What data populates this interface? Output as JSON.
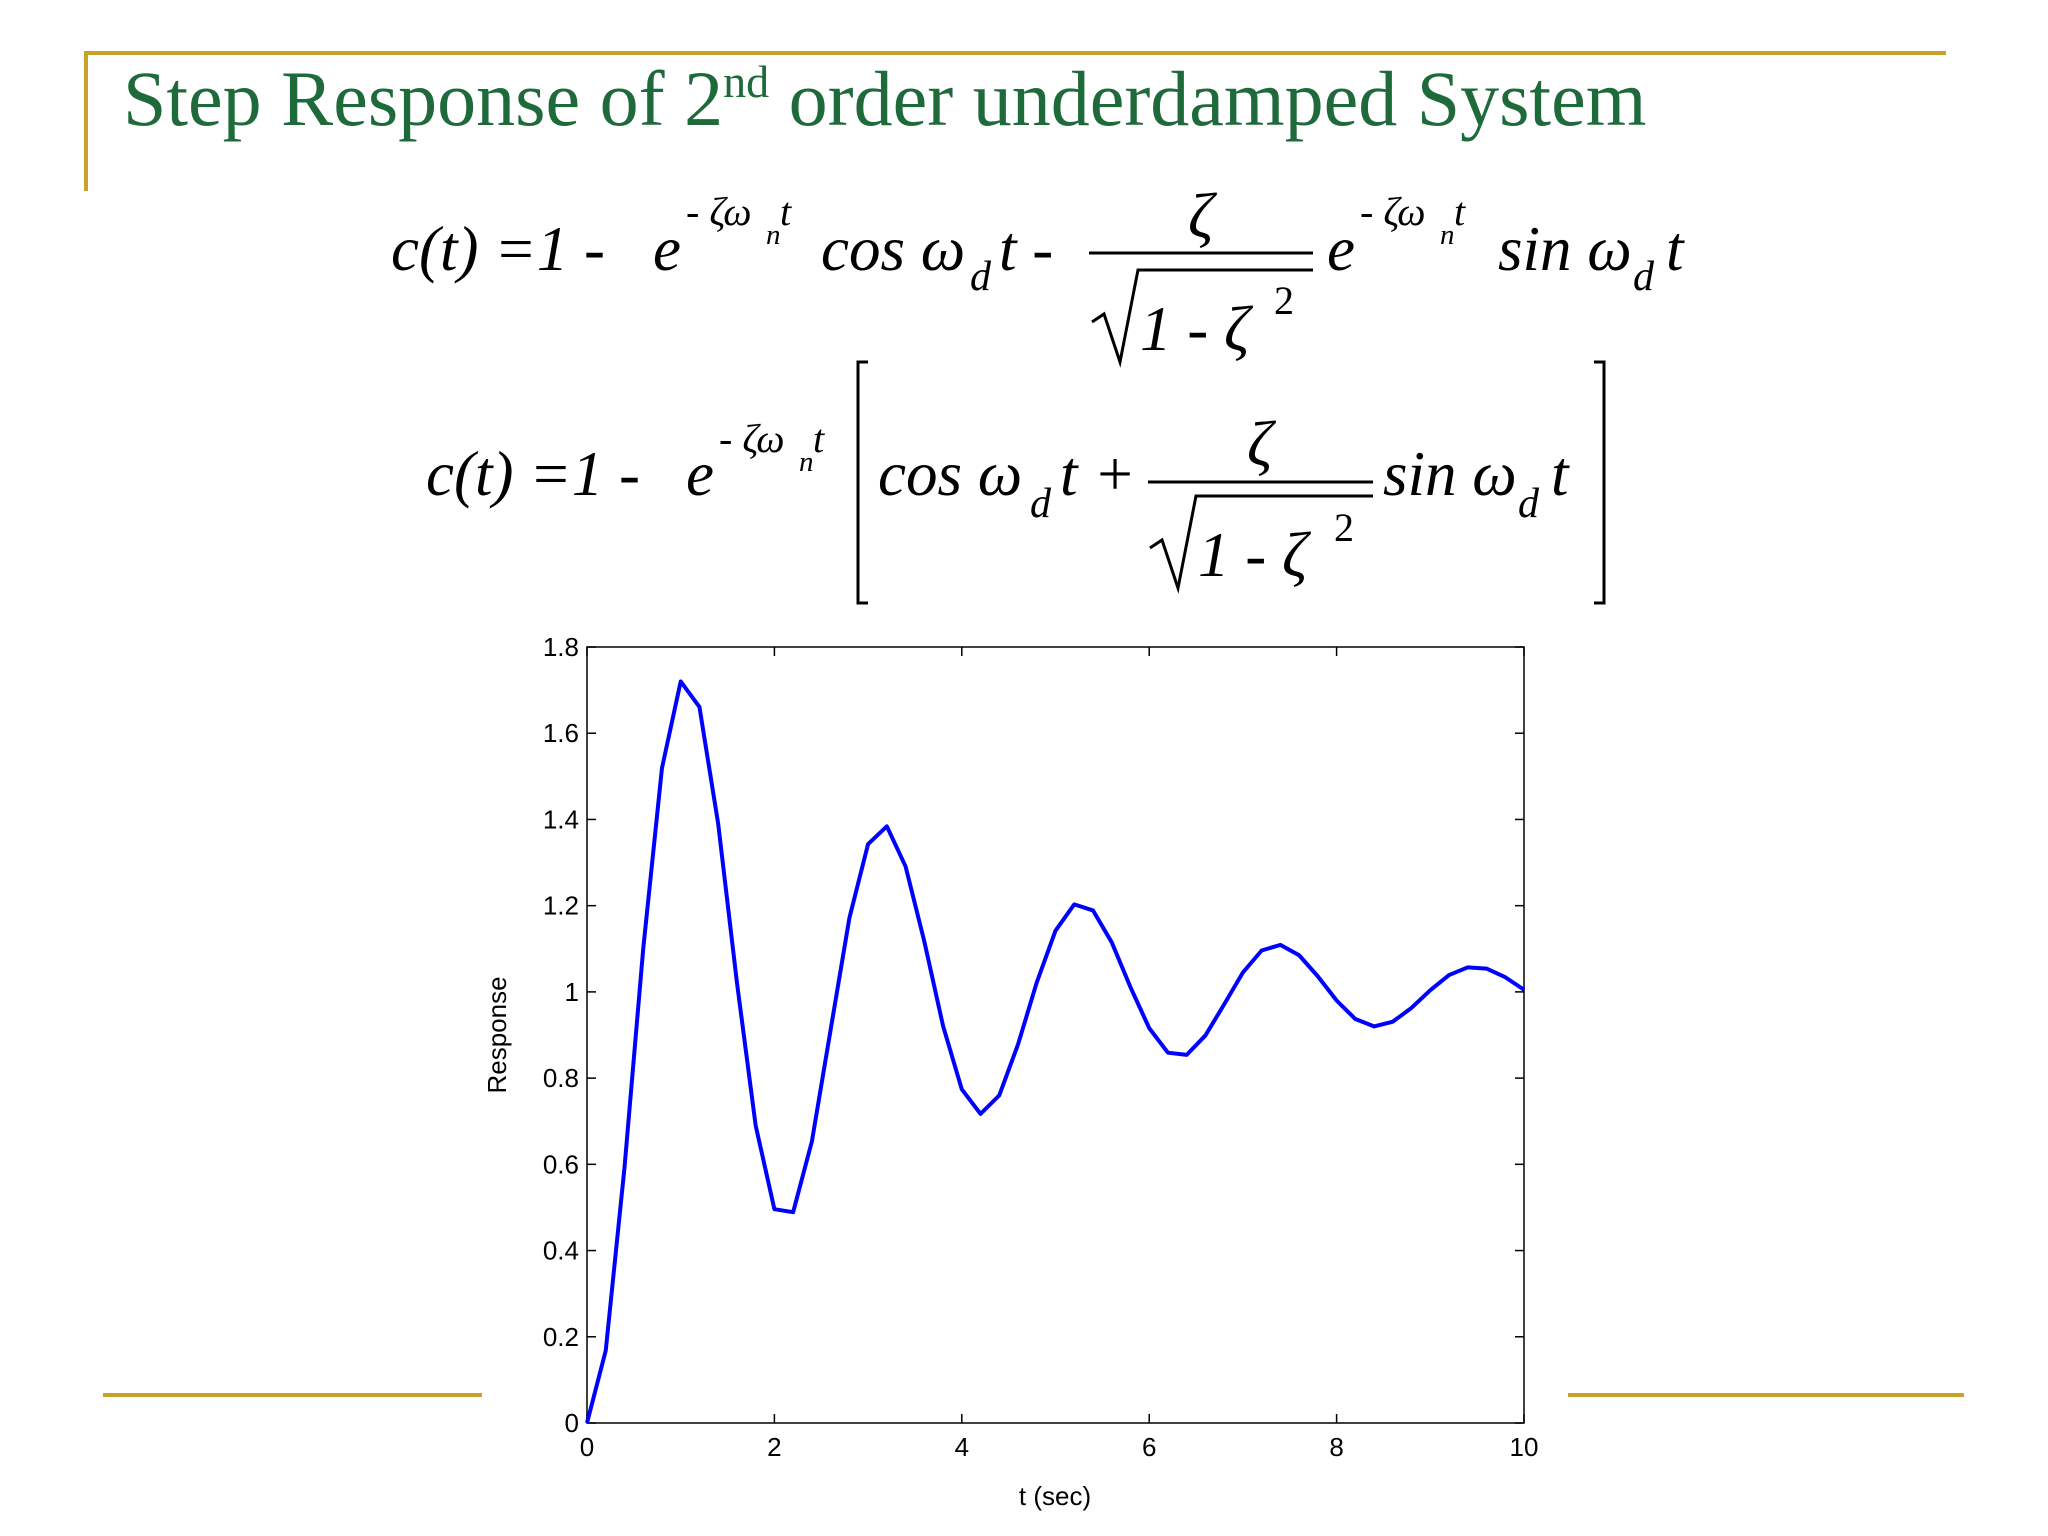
{
  "slide": {
    "title_parts": [
      "Step Response of 2",
      "nd",
      " order underdamped System"
    ]
  },
  "equations": [
    [
      "c(t) =1 -",
      "e",
      "- ζω",
      "n",
      "t",
      "cos ω",
      "d",
      "t -",
      "ζ",
      "1 - ζ",
      "2",
      "e",
      "- ζω",
      "n",
      "t",
      "sin ω",
      "d",
      "t"
    ],
    [
      "c(t) =1 -",
      "e",
      "- ζω",
      "n",
      "t",
      "cos ω",
      "d",
      "t +",
      "ζ",
      "1 - ζ",
      "2",
      "sin ω",
      "d",
      "t"
    ]
  ],
  "chart_data": {
    "type": "line",
    "xlabel": "t (sec)",
    "ylabel": "Response",
    "x": [
      0,
      0.2,
      0.4,
      0.6,
      0.8,
      1.0,
      1.2,
      1.4,
      1.6,
      1.8,
      2.0,
      2.2,
      2.4,
      2.6,
      2.8,
      3.0,
      3.2,
      3.4,
      3.6,
      3.8,
      4.0,
      4.2,
      4.4,
      4.6,
      4.8,
      5.0,
      5.2,
      5.4,
      5.6,
      5.8,
      6.0,
      6.2,
      6.4,
      6.6,
      6.8,
      7.0,
      7.2,
      7.4,
      7.6,
      7.8,
      8.0,
      8.2,
      8.4,
      8.6,
      8.8,
      9.0,
      9.2,
      9.4,
      9.6,
      9.8,
      10
    ],
    "series": [
      {
        "color": "#0000ff",
        "values": [
          0,
          0.168,
          0.592,
          1.1,
          1.519,
          1.72,
          1.661,
          1.39,
          1.022,
          0.69,
          0.496,
          0.489,
          0.653,
          0.912,
          1.171,
          1.343,
          1.384,
          1.291,
          1.117,
          0.921,
          0.774,
          0.717,
          0.76,
          0.878,
          1.022,
          1.142,
          1.203,
          1.189,
          1.115,
          1.011,
          0.916,
          0.859,
          0.854,
          0.899,
          0.971,
          1.045,
          1.096,
          1.109,
          1.085,
          1.036,
          0.98,
          0.937,
          0.92,
          0.931,
          0.963,
          1.004,
          1.039,
          1.057,
          1.054,
          1.034,
          1.005
        ]
      }
    ],
    "xlim": [
      0,
      10
    ],
    "xticks": [
      0,
      2,
      4,
      6,
      8,
      10
    ],
    "ylim": [
      0,
      1.8
    ],
    "yticks": [
      0,
      0.2,
      0.4,
      0.6,
      0.8,
      1,
      1.2,
      1.4,
      1.6,
      1.8
    ]
  }
}
